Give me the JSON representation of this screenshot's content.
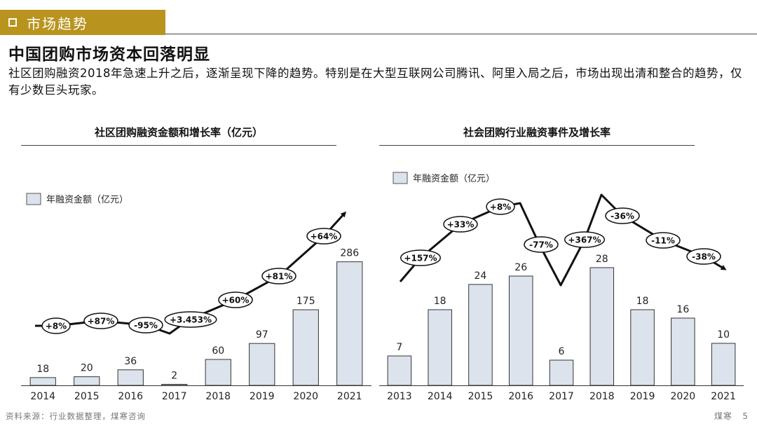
{
  "header": {
    "section_label": "市场趋势"
  },
  "page": {
    "title": "中国团购市场资本回落明显",
    "subtitle": "社区团购融资2018年急速上升之后，逐渐呈现下降的趋势。特别是在大型互联网公司腾讯、阿里入局之后，市场出现出清和整合的趋势，仅有少数巨头玩家。"
  },
  "chart_data": [
    {
      "type": "bar",
      "title": "社区团购融资金额和增长率（亿元）",
      "legend": "年融资金额（亿元）",
      "legend_position": "top-left",
      "categories": [
        "2014",
        "2015",
        "2016",
        "2017",
        "2018",
        "2019",
        "2020",
        "2021"
      ],
      "values": [
        18,
        20,
        36,
        2,
        60,
        97,
        175,
        286
      ],
      "ylim": [
        0,
        300
      ],
      "growth_labels": [
        "+8%",
        "+87%",
        "-95%",
        "+3.453%",
        "+60%",
        "+81%",
        "+64%"
      ],
      "bar_color": "#dde3ec"
    },
    {
      "type": "bar",
      "title": "社会团购行业融资事件及增长率",
      "legend": "年融资金额（亿元）",
      "legend_position": "top-left",
      "categories": [
        "2013",
        "2014",
        "2015",
        "2016",
        "2017",
        "2018",
        "2019",
        "2020",
        "2021"
      ],
      "values": [
        7,
        18,
        24,
        26,
        6,
        28,
        18,
        16,
        10
      ],
      "ylim": [
        0,
        30
      ],
      "growth_labels": [
        "+157%",
        "+33%",
        "+8%",
        "-77%",
        "+367%",
        "-36%",
        "-11%",
        "-38%"
      ],
      "bar_color": "#dde3ec"
    }
  ],
  "footer": {
    "source": "资料来源：行业数据整理，煤寒咨询",
    "brand": "煤寒",
    "page_number": "5"
  }
}
